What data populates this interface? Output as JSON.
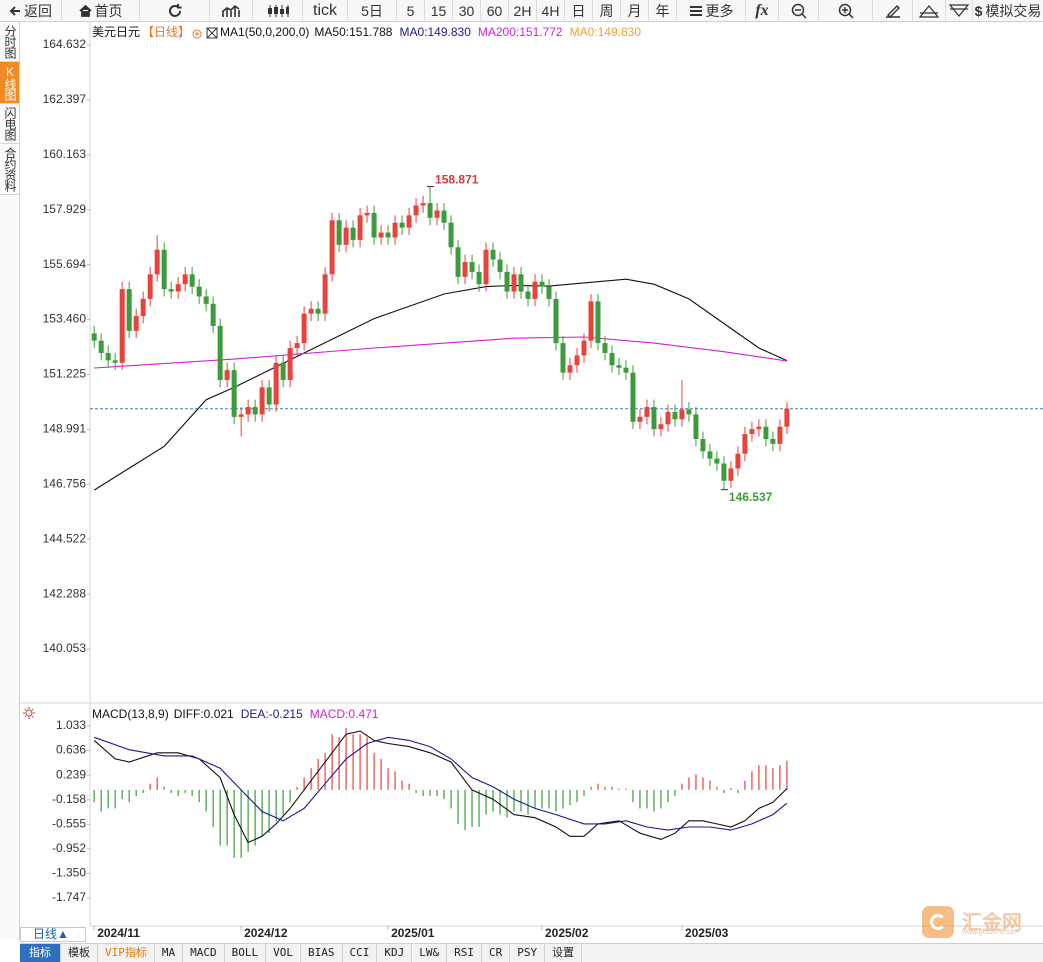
{
  "toolbar": {
    "items": [
      "返回",
      "首页",
      "tick",
      "5日",
      "5",
      "15",
      "30",
      "60",
      "2H",
      "4H",
      "日",
      "周",
      "月",
      "年",
      "更多",
      "fx",
      "$",
      "模拟交易"
    ]
  },
  "sidebar": {
    "items": [
      "分时图",
      "K线图",
      "闪电图",
      "合约资料"
    ]
  },
  "period_button": "日线▲",
  "tabs": [
    "指标",
    "模板",
    "VIP指标",
    "MA",
    "MACD",
    "BOLL",
    "VOL",
    "BIAS",
    "CCI",
    "KDJ",
    "LW&",
    "RSI",
    "CR",
    "PSY",
    "设置"
  ],
  "logo": {
    "name": "汇金网",
    "url": "www.gold678.com"
  },
  "chart_data": [
    {
      "type": "candlestick",
      "title": "美元日元",
      "period": "【日线】",
      "indicator": "MA1(50,0,200,0)",
      "legend": [
        {
          "label": "MA50:151.788",
          "color": "#111111"
        },
        {
          "label": "MA0:149.830",
          "color": "#1a1a8c"
        },
        {
          "label": "MA200:151.772",
          "color": "#d21fd2"
        },
        {
          "label": "MA0:149.830",
          "color": "#f0a030"
        }
      ],
      "xlim": [
        -0.6,
        135.6
      ],
      "xticks": [
        {
          "value": 0,
          "label": "2024/11"
        },
        {
          "value": 21,
          "label": "2024/12"
        },
        {
          "value": 42,
          "label": "2025/01"
        },
        {
          "value": 64,
          "label": "2025/02"
        },
        {
          "value": 84,
          "label": "2025/03"
        }
      ],
      "ylim": [
        137.978,
        165.568
      ],
      "yticks": [
        164.632,
        162.397,
        160.163,
        157.929,
        155.694,
        {
          "value": 153.46,
          "label": "153.460"
        },
        151.225,
        148.991,
        146.756,
        144.522,
        142.288,
        140.053
      ],
      "up_color": "#e8423c",
      "down_color": "#3d9b3d",
      "open": [
        152.9,
        152.6,
        152.1,
        151.8,
        151.7,
        154.7,
        153.0,
        153.6,
        154.3,
        155.3,
        156.3,
        154.7,
        154.6,
        154.9,
        155.3,
        154.8,
        154.4,
        154.1,
        153.2,
        151.0,
        151.4,
        149.5,
        149.6,
        149.9,
        149.6,
        150.7,
        150.0,
        151.7,
        151.0,
        152.3,
        152.5,
        153.7,
        153.9,
        153.7,
        155.3,
        157.5,
        156.5,
        157.2,
        156.7,
        157.7,
        157.8,
        156.8,
        157.0,
        156.8,
        157.4,
        157.2,
        157.7,
        158.1,
        158.2,
        157.6,
        157.9,
        157.4,
        156.4,
        155.2,
        155.8,
        155.4,
        154.9,
        156.3,
        155.9,
        155.4,
        154.6,
        155.3,
        154.6,
        154.3,
        155.0,
        154.8,
        154.3,
        152.5,
        151.3,
        151.6,
        152.0,
        152.6,
        154.2,
        152.5,
        152.1,
        151.6,
        151.5,
        151.3,
        149.3,
        149.5,
        149.9,
        149.0,
        149.2,
        149.7,
        149.4,
        149.8,
        149.6,
        148.6,
        148.1,
        147.8,
        147.6,
        146.9,
        147.4,
        148.0,
        148.8,
        149.0,
        149.1,
        148.6,
        148.4,
        149.1
      ],
      "high": [
        153.2,
        152.9,
        152.4,
        152.1,
        155.0,
        155.0,
        153.9,
        154.6,
        155.6,
        156.9,
        156.6,
        155.0,
        155.2,
        155.6,
        155.6,
        155.1,
        154.7,
        154.4,
        153.5,
        151.7,
        151.7,
        149.9,
        150.2,
        150.2,
        151.0,
        151.0,
        152.0,
        152.0,
        152.6,
        152.8,
        154.0,
        154.2,
        154.2,
        155.6,
        157.8,
        157.8,
        157.5,
        157.5,
        158.0,
        158.1,
        158.1,
        157.3,
        157.3,
        157.7,
        157.7,
        158.0,
        158.4,
        158.5,
        158.871,
        158.2,
        158.2,
        157.7,
        156.7,
        156.1,
        156.1,
        155.7,
        156.6,
        156.6,
        156.2,
        155.7,
        155.6,
        155.6,
        154.9,
        155.3,
        155.3,
        155.1,
        154.6,
        152.8,
        151.9,
        152.3,
        152.9,
        154.5,
        154.5,
        152.8,
        152.4,
        151.9,
        151.8,
        151.6,
        149.8,
        150.2,
        150.2,
        149.5,
        150.0,
        150.0,
        151.0,
        150.1,
        149.9,
        148.9,
        148.4,
        148.1,
        147.9,
        147.7,
        148.3,
        149.1,
        149.3,
        149.4,
        149.4,
        148.9,
        149.4,
        150.1
      ],
      "low": [
        152.3,
        151.8,
        151.5,
        151.4,
        151.4,
        152.7,
        152.7,
        153.3,
        154.0,
        155.0,
        154.4,
        154.3,
        154.3,
        154.6,
        154.5,
        154.1,
        153.8,
        152.9,
        150.7,
        150.7,
        149.2,
        148.7,
        149.3,
        149.3,
        149.3,
        149.7,
        149.7,
        150.7,
        150.7,
        152.0,
        152.2,
        153.4,
        153.4,
        153.4,
        155.0,
        156.2,
        156.2,
        156.4,
        156.4,
        157.4,
        156.5,
        156.5,
        156.5,
        156.5,
        156.9,
        156.9,
        157.4,
        157.8,
        157.3,
        157.3,
        157.1,
        156.1,
        154.9,
        154.9,
        155.1,
        154.6,
        154.6,
        155.6,
        155.1,
        154.3,
        154.3,
        154.3,
        154.0,
        154.0,
        154.5,
        154.0,
        152.2,
        151.0,
        151.0,
        151.3,
        151.7,
        152.3,
        152.2,
        151.8,
        151.3,
        151.2,
        151.0,
        149.0,
        149.0,
        149.2,
        148.7,
        148.7,
        148.9,
        149.1,
        149.1,
        149.3,
        148.3,
        147.8,
        147.5,
        147.3,
        146.537,
        146.6,
        147.1,
        147.7,
        148.5,
        148.7,
        148.3,
        148.1,
        148.1,
        148.8
      ],
      "close": [
        152.6,
        152.1,
        151.8,
        151.7,
        154.7,
        153.0,
        153.6,
        154.3,
        155.3,
        156.3,
        154.7,
        154.6,
        154.9,
        155.3,
        154.8,
        154.4,
        154.1,
        153.2,
        151.0,
        151.4,
        149.5,
        149.6,
        149.9,
        149.6,
        150.7,
        150.0,
        151.7,
        151.0,
        152.3,
        152.5,
        153.7,
        153.9,
        153.7,
        155.3,
        157.5,
        156.5,
        157.2,
        156.7,
        157.7,
        157.8,
        156.8,
        157.0,
        156.8,
        157.4,
        157.2,
        157.7,
        158.1,
        158.2,
        157.6,
        157.9,
        157.4,
        156.4,
        155.2,
        155.8,
        155.4,
        154.9,
        156.3,
        155.9,
        155.4,
        154.6,
        155.3,
        154.6,
        154.3,
        155.0,
        154.8,
        154.3,
        152.5,
        151.3,
        151.6,
        152.0,
        152.6,
        154.2,
        152.5,
        152.1,
        151.6,
        151.5,
        151.3,
        149.3,
        149.5,
        149.9,
        149.0,
        149.2,
        149.7,
        149.4,
        149.8,
        149.6,
        148.6,
        148.1,
        147.8,
        147.6,
        146.9,
        147.4,
        148.0,
        148.8,
        149.0,
        149.1,
        148.6,
        148.4,
        149.1,
        149.83
      ],
      "series": [
        {
          "color": "#111111",
          "x": [
            0,
            10,
            16,
            20,
            30,
            40,
            50,
            56,
            60,
            65,
            70,
            76,
            80,
            85,
            90,
            95,
            99
          ],
          "values": [
            146.52,
            148.3,
            150.2,
            150.7,
            152.1,
            153.5,
            154.5,
            154.8,
            154.85,
            154.82,
            154.95,
            155.1,
            154.9,
            154.3,
            153.3,
            152.3,
            151.788
          ]
        },
        {
          "color": "#d21fd2",
          "x": [
            0,
            20,
            40,
            60,
            70,
            80,
            90,
            99
          ],
          "values": [
            151.49,
            151.85,
            152.3,
            152.7,
            152.75,
            152.5,
            152.15,
            151.772
          ]
        }
      ],
      "last_price": 149.83,
      "last_price_color": "#3a7fc1"
    },
    {
      "type": "macd",
      "title": "MACD(13,8,9)",
      "legend": [
        {
          "label": "DIFF:0.021",
          "color": "#111111"
        },
        {
          "label": "DEA:-0.215",
          "color": "#1a1a8c"
        },
        {
          "label": "MACD:0.471",
          "color": "#d21fd2"
        }
      ],
      "ylim": [
        -2.184,
        1.372
      ],
      "yticks": [
        1.033,
        0.636,
        0.239,
        -0.158,
        -0.555,
        -0.952,
        {
          "value": -1.35,
          "label": "-1.350"
        },
        -1.747
      ],
      "up_color": "#e8423c",
      "down_color": "#3d9b3d",
      "histogram": [
        -0.2,
        -0.35,
        -0.3,
        -0.3,
        -0.15,
        -0.2,
        -0.1,
        -0.05,
        0.1,
        0.2,
        0.05,
        -0.05,
        -0.1,
        -0.05,
        -0.1,
        -0.2,
        -0.35,
        -0.6,
        -0.9,
        -0.9,
        -1.1,
        -1.1,
        -1.0,
        -0.9,
        -0.75,
        -0.7,
        -0.5,
        -0.4,
        -0.2,
        0.05,
        0.2,
        0.35,
        0.5,
        0.6,
        0.9,
        0.85,
        1.0,
        0.9,
        0.9,
        0.85,
        0.6,
        0.5,
        0.35,
        0.3,
        0.15,
        0.1,
        -0.05,
        -0.1,
        -0.1,
        -0.1,
        -0.15,
        -0.3,
        -0.55,
        -0.65,
        -0.6,
        -0.6,
        -0.4,
        -0.35,
        -0.4,
        -0.45,
        -0.35,
        -0.35,
        -0.4,
        -0.3,
        -0.3,
        -0.3,
        -0.35,
        -0.3,
        -0.25,
        -0.2,
        -0.1,
        0.05,
        0.1,
        0.05,
        0.05,
        0.02,
        0.02,
        -0.2,
        -0.3,
        -0.3,
        -0.35,
        -0.3,
        -0.2,
        -0.1,
        0.1,
        0.2,
        0.25,
        0.2,
        0.15,
        0.05,
        -0.05,
        0.03,
        -0.05,
        0.15,
        0.3,
        0.4,
        0.4,
        0.35,
        0.4,
        0.471
      ],
      "series": [
        {
          "color": "#111111",
          "x": [
            0,
            3,
            5,
            9,
            12,
            15,
            18,
            20,
            22,
            24,
            26,
            28,
            30,
            32,
            34,
            36,
            38,
            40,
            42,
            45,
            48,
            51,
            54,
            57,
            60,
            63,
            66,
            68,
            70,
            72,
            75,
            78,
            81,
            83,
            85,
            87,
            89,
            91,
            93,
            95,
            97,
            99
          ],
          "values": [
            0.8,
            0.5,
            0.45,
            0.6,
            0.6,
            0.5,
            0.2,
            -0.4,
            -0.85,
            -0.75,
            -0.55,
            -0.3,
            0,
            0.3,
            0.6,
            0.9,
            0.95,
            0.8,
            0.75,
            0.7,
            0.6,
            0.45,
            0,
            -0.15,
            -0.4,
            -0.45,
            -0.6,
            -0.75,
            -0.75,
            -0.55,
            -0.5,
            -0.7,
            -0.8,
            -0.7,
            -0.5,
            -0.5,
            -0.55,
            -0.6,
            -0.5,
            -0.3,
            -0.2,
            0.021
          ]
        },
        {
          "color": "#1a1a8c",
          "x": [
            0,
            5,
            10,
            14,
            18,
            21,
            24,
            27,
            30,
            33,
            36,
            39,
            42,
            45,
            48,
            51,
            54,
            57,
            60,
            63,
            66,
            70,
            73,
            76,
            79,
            82,
            85,
            88,
            91,
            94,
            97,
            99
          ],
          "values": [
            0.85,
            0.65,
            0.55,
            0.55,
            0.35,
            0,
            -0.35,
            -0.5,
            -0.3,
            0.1,
            0.5,
            0.75,
            0.85,
            0.8,
            0.7,
            0.5,
            0.2,
            0.05,
            -0.15,
            -0.3,
            -0.4,
            -0.55,
            -0.55,
            -0.5,
            -0.6,
            -0.65,
            -0.6,
            -0.6,
            -0.65,
            -0.55,
            -0.4,
            -0.215
          ]
        }
      ]
    }
  ]
}
